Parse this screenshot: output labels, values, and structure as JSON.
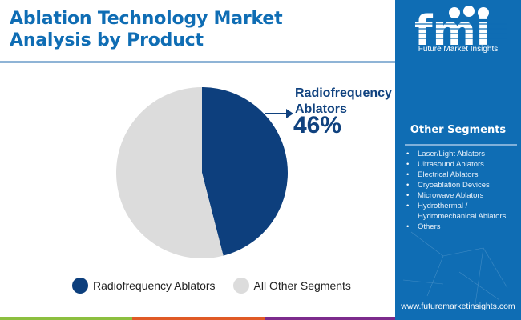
{
  "header": {
    "title_line1": "Ablation Technology Market",
    "title_line2": "Analysis by Product"
  },
  "callout": {
    "label_line1": "Radiofrequency",
    "label_line2": "Ablators",
    "value": "46%"
  },
  "legend": {
    "items": [
      {
        "label": "Radiofrequency Ablators",
        "color": "#0d3f7d"
      },
      {
        "label": "All Other Segments",
        "color": "#dcdcdc"
      }
    ]
  },
  "panel": {
    "logo_letters": "fmi",
    "logo_text": "Future Market Insights",
    "segments_title": "Other Segments",
    "segments": [
      "Laser/Light Ablators",
      "Ultrasound Ablators",
      "Electrical Ablators",
      "Cryoablation Devices",
      "Microwave Ablators",
      "Hydrothermal / Hydromechanical Ablators",
      "Others"
    ],
    "website": "www.futuremarketinsights.com",
    "background_color": "#0f6db4"
  },
  "bottom_bar": {
    "colors": [
      "#8cbf3f",
      "#e05a26",
      "#7c2b8c"
    ]
  },
  "chart_data": {
    "type": "pie",
    "title": "Ablation Technology Market Analysis by Product",
    "categories": [
      "Radiofrequency Ablators",
      "All Other Segments"
    ],
    "values": [
      46,
      54
    ],
    "colors": [
      "#0d3f7d",
      "#dcdcdc"
    ],
    "start_angle": "12 o'clock, clockwise",
    "annotations": [
      {
        "label": "Radiofrequency Ablators",
        "value": "46%"
      }
    ],
    "legend_position": "bottom"
  }
}
